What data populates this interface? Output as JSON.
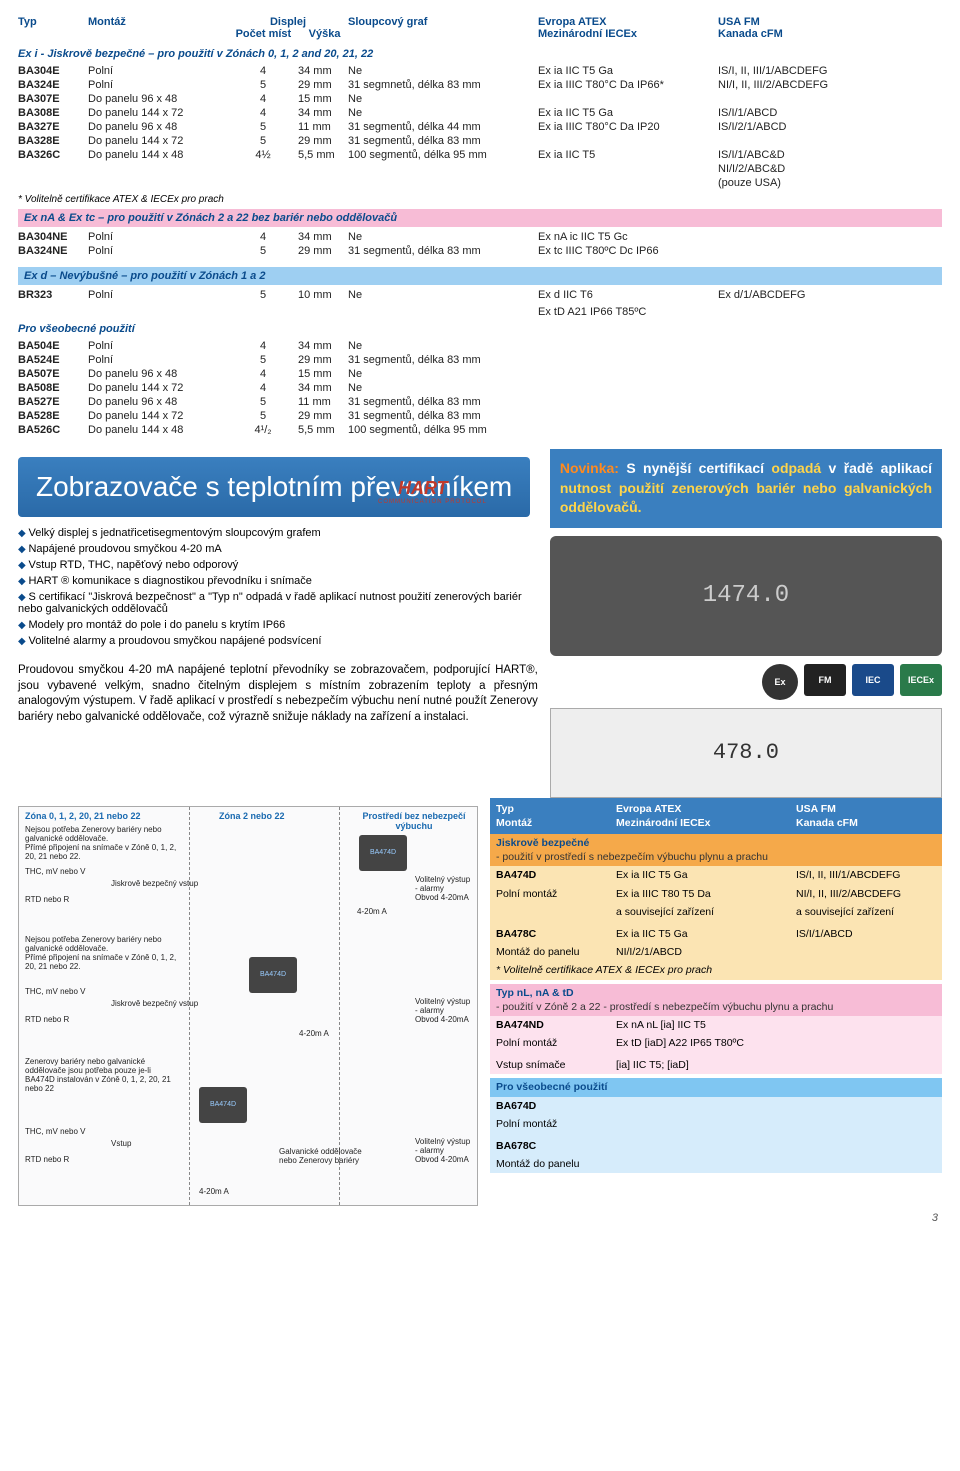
{
  "header": {
    "typ": "Typ",
    "montaz": "Montáž",
    "displej": "Displej",
    "pocet_mist": "Počet míst",
    "vyska": "Výška",
    "graf": "Sloupcový graf",
    "atex": "Evropa ATEX",
    "iecex": "Mezinárodní IECEx",
    "usa": "USA FM",
    "kanada": "Kanada cFM"
  },
  "section1": {
    "title": "Ex i - Jiskrově bezpečné – pro použití v Zónách  0, 1, 2 and 20, 21, 22",
    "rows": [
      {
        "typ": "BA304E",
        "mont": "Polní",
        "dig": "4",
        "h": "34 mm",
        "graf": "Ne",
        "atex": "Ex ia IIC T5 Ga",
        "usa": "IS/I, II, III/1/ABCDEFG"
      },
      {
        "typ": "BA324E",
        "mont": "Polní",
        "dig": "5",
        "h": "29 mm",
        "graf": "31 segmnetů, délka 83 mm",
        "atex": "Ex ia IIIC T80°C Da IP66*",
        "usa": "NI/I, II, III/2/ABCDEFG"
      },
      {
        "typ": "BA307E",
        "mont": "Do panelu 96 x 48",
        "dig": "4",
        "h": "15 mm",
        "graf": "Ne",
        "atex": "",
        "usa": ""
      },
      {
        "typ": "BA308E",
        "mont": "Do panelu 144 x 72",
        "dig": "4",
        "h": "34 mm",
        "graf": "Ne",
        "atex": "Ex ia IIC T5 Ga",
        "usa": "IS/I/1/ABCD"
      },
      {
        "typ": "BA327E",
        "mont": "Do panelu 96 x 48",
        "dig": "5",
        "h": "11 mm",
        "graf": "31 segmentů, délka 44 mm",
        "atex": "Ex ia IIIC T80°C Da IP20",
        "usa": "IS/I/2/1/ABCD"
      },
      {
        "typ": "BA328E",
        "mont": "Do panelu 144 x 72",
        "dig": "5",
        "h": "29 mm",
        "graf": "31 segmentů, délka 83 mm",
        "atex": "",
        "usa": ""
      },
      {
        "typ": "BA326C",
        "mont": "Do panelu 144 x 48",
        "dig": "4½",
        "h": "5,5 mm",
        "graf": "100 segmentů, délka 95 mm",
        "atex": "Ex ia IIC T5",
        "usa": "IS/I/1/ABC&D"
      }
    ],
    "usa_extra1": "NI/I/2/ABC&D",
    "usa_extra2": "(pouze USA)",
    "note": "* Volitelně certifikace ATEX & IECEx pro prach"
  },
  "section2": {
    "title": "Ex nA & Ex tc – pro použití v Zónách 2 a 22 bez bariér nebo oddělovačů",
    "rows": [
      {
        "typ": "BA304NE",
        "mont": "Polní",
        "dig": "4",
        "h": "34 mm",
        "graf": "Ne",
        "atex": "Ex nA ic IIC T5 Gc",
        "usa": ""
      },
      {
        "typ": "BA324NE",
        "mont": "Polní",
        "dig": "5",
        "h": "29 mm",
        "graf": "31 segmentů, délka 83 mm",
        "atex": "Ex tc IIIC T80ºC Dc IP66",
        "usa": ""
      }
    ]
  },
  "section3": {
    "title": "Ex d – Nevýbušné – pro použití v Zónách 1 a 2",
    "rows": [
      {
        "typ": "BR323",
        "mont": "Polní",
        "dig": "5",
        "h": "10 mm",
        "graf": "Ne",
        "atex": "Ex d IIC T6",
        "usa": "Ex d/1/ABCDEFG"
      }
    ],
    "atex_extra": "Ex tD A21 IP66 T85ºC"
  },
  "section4": {
    "title": "Pro všeobecné použití",
    "rows": [
      {
        "typ": "BA504E",
        "mont": "Polní",
        "dig": "4",
        "h": "34 mm",
        "graf": "Ne"
      },
      {
        "typ": "BA524E",
        "mont": "Polní",
        "dig": "5",
        "h": "29 mm",
        "graf": "31 segmentů, délka 83 mm"
      },
      {
        "typ": "BA507E",
        "mont": "Do panelu  96 x 48",
        "dig": "4",
        "h": "15 mm",
        "graf": "Ne"
      },
      {
        "typ": "BA508E",
        "mont": "Do panelu 144 x 72",
        "dig": "4",
        "h": "34 mm",
        "graf": "Ne"
      },
      {
        "typ": "BA527E",
        "mont": "Do panelu  96 x 48",
        "dig": "5",
        "h": "11 mm",
        "graf": "31 segmentů, délka 83 mm"
      },
      {
        "typ": "BA528E",
        "mont": "Do panelu 144 x 72",
        "dig": "5",
        "h": "29 mm",
        "graf": "31 segmentů, délka 83 mm"
      },
      {
        "typ": "BA526C",
        "mont": "Do panelu 144 x 48",
        "dig": "4¹/₂",
        "h": "5,5 mm",
        "graf": "100 segmentů, délka 95 mm"
      }
    ]
  },
  "bluebox": {
    "title": "Zobrazovače s teplotním převodníkem"
  },
  "bullets": [
    "Velký displej s jednatřicetisegmentovým sloupcovým grafem",
    "Napájené proudovou smyčkou 4-20 mA",
    "Vstup RTD, THC, napěťový nebo odporový",
    "HART ® komunikace s diagnostikou převodníku i snímače",
    "S certifikací \"Jiskrová bezpečnost\" a \"Typ n\" odpadá v řadě aplikací nutnost použití zenerových bariér nebo galvanických oddělovačů",
    "Modely pro montáž do pole i do panelu s krytím IP66",
    "Volitelné alarmy a proudovou smyčkou napájené podsvícení"
  ],
  "hart": {
    "logo": "HART",
    "sub": "COMMUNICATION PROTOCOL"
  },
  "para": "Proudovou smyčkou 4-20 mA napájené teplotní převodníky se zobrazovačem, podporující HART®, jsou vybavené velkým, snadno čitelným displejem s místním zobrazením teploty a přesným analogovým výstupem. V řadě aplikací v prostředí s nebezpečím výbuchu není nutné použít Zenerovy bariéry nebo galvanické oddělovače, což výrazně snižuje náklady na zařízení a instalaci.",
  "novinka": {
    "nov": "Novinka:",
    "t1": " S nynější certifikací ",
    "a1": "odpadá",
    "t2": " v řadě aplikací ",
    "a2": "nutnost použití zenerových bariér nebo galvanických oddělovačů."
  },
  "product_display1": "1474.0",
  "product_display2": "478.0",
  "cert_icons": [
    "Ex",
    "FM",
    "IEC",
    "IECEx"
  ],
  "diagram": {
    "zone_left": "Zóna 0, 1, 2, 20, 21 nebo 22",
    "zone_mid": "Zóna 2 nebo 22",
    "zone_right": "Prostředí bez nebezpečí výbuchu",
    "block1": "Nejsou potřeba Zenerovy bariéry nebo galvanické oddělovače.\nPřímé připojení na snímače v Zóně 0, 1, 2, 20, 21 nebo 22.",
    "block2": "Nejsou potřeba Zenerovy bariéry nebo galvanické oddělovače.\nPřímé připojení na snímače v Zóně 0, 1, 2, 20, 21 nebo 22.",
    "block3": "Zenerovy bariéry nebo galvanické oddělovače jsou potřeba pouze je-li BA474D instalován v Zóně 0, 1, 2, 20, 21 nebo 22",
    "thc": "THC, mV nebo V",
    "rtd": "RTD nebo R",
    "jbv": "Jiskrově bezpečný vstup",
    "vstup": "Vstup",
    "galvan": "Galvanické oddělovače nebo Zenerovy bariéry",
    "device": "BA474D",
    "vol_out": "Volitelný výstup - alarmy",
    "obvod": "Obvod 4-20mA",
    "loop": "4-20m A"
  },
  "rtable": {
    "head": {
      "c1": "Typ",
      "c1b": "Montáž",
      "c2": "Evropa ATEX",
      "c2b": "Mezinárodní IECEx",
      "c3": "USA FM",
      "c3b": "Kanada cFM"
    },
    "yellow": {
      "title": "Jiskrově bezpečné",
      "sub": "- použití v prostředí s nebezpečím výbuchu plynu a prachu",
      "r1": {
        "c1": "BA474D",
        "c2": "Ex ia IIC T5 Ga",
        "c3": "IS/I, II, III/1/ABCDEFG"
      },
      "r2": {
        "c1": "Polní montáž",
        "c2": "Ex ia IIIC T80 T5 Da",
        "c3": "NI/I, II, III/2/ABCDEFG"
      },
      "r3": {
        "c1": "",
        "c2": "a související zařízení",
        "c3": "a související zařízení"
      },
      "r4": {
        "c1": "BA478C",
        "c2": "Ex ia IIC T5 Ga",
        "c3": "IS/I/1/ABCD"
      },
      "r5": {
        "c1": "Montáž do panelu",
        "c2": "NI/I/2/1/ABCD",
        "c3": ""
      },
      "note": "* Volitelně certifikace ATEX & IECEx pro prach"
    },
    "pink": {
      "title": "Typ nL, nA & tD",
      "sub": "- použití v Zóně 2 a 22 - prostředí s nebezpečím výbuchu plynu a prachu",
      "r1": {
        "c1": "BA474ND",
        "c2": "Ex nA nL [ia] IIC T5",
        "c3": ""
      },
      "r2": {
        "c1": "Polní montáž",
        "c2": "Ex tD [iaD] A22 IP65 T80ºC",
        "c3": ""
      },
      "r3": {
        "c1": "Vstup snímače",
        "c2": "[ia] IIC T5; [iaD]",
        "c3": ""
      }
    },
    "blue": {
      "title": "Pro všeobecné použití",
      "r1": {
        "c1": "BA674D",
        "c2": "",
        "c3": ""
      },
      "r2": {
        "c1": "Polní montáž",
        "c2": "",
        "c3": ""
      },
      "r3": {
        "c1": "BA678C",
        "c2": "",
        "c3": ""
      },
      "r4": {
        "c1": "Montáž do panelu",
        "c2": "",
        "c3": ""
      }
    }
  },
  "pagenum": "3"
}
